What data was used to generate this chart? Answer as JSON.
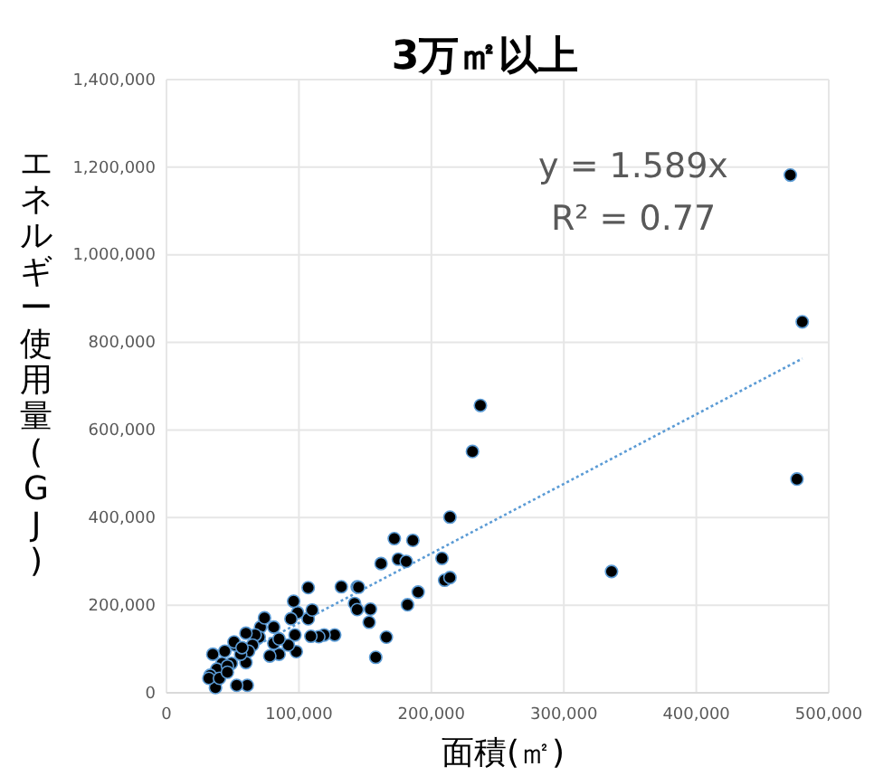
{
  "chart_data": {
    "type": "scatter",
    "title": "3万㎡以上",
    "xlabel": "面積(㎡)",
    "ylabel": "エネルギー使用量(GJ)",
    "xlim": [
      0,
      500000
    ],
    "xticks": [
      {
        "value": 0,
        "label": "0"
      },
      {
        "value": 100000,
        "label": "100,000"
      },
      {
        "value": 200000,
        "label": "200,000"
      },
      {
        "value": 300000,
        "label": "300,000"
      },
      {
        "value": 400000,
        "label": "400,000"
      },
      {
        "value": 500000,
        "label": "500,000"
      }
    ],
    "ylim": [
      0,
      1400000
    ],
    "yticks": [
      {
        "value": 0,
        "label": "0"
      },
      {
        "value": 200000,
        "label": "200,000"
      },
      {
        "value": 400000,
        "label": "400,000"
      },
      {
        "value": 600000,
        "label": "600,000"
      },
      {
        "value": 800000,
        "label": "800,000"
      },
      {
        "value": 1000000,
        "label": "1,000,000"
      },
      {
        "value": 1200000,
        "label": "1,200,000"
      },
      {
        "value": 1400000,
        "label": "1,400,000"
      }
    ],
    "grid": true,
    "marker": "circle",
    "annotations": [
      "y = 1.589x",
      "R² = 0.77"
    ],
    "series": [
      {
        "type": "scatter",
        "color": "#000000",
        "x": [
          471000,
          480000,
          476000,
          336000,
          237000,
          231000,
          214000,
          172000,
          186000,
          175000,
          181000,
          162000,
          208000,
          210000,
          214000,
          190000,
          107000,
          132000,
          144000,
          182000,
          154000,
          153000,
          166000,
          158000,
          145000,
          142000,
          144000,
          127000,
          119000,
          115000,
          109000,
          97000,
          98000,
          107000,
          110000,
          99000,
          96000,
          94000,
          92000,
          85000,
          81000,
          81000,
          78000,
          71000,
          70000,
          67000,
          65000,
          62000,
          60000,
          61000,
          53000,
          56000,
          52000,
          51000,
          49000,
          44000,
          42000,
          38000,
          35000,
          37000,
          33000,
          32000,
          40000,
          46000,
          57000,
          74000,
          60000,
          85000,
          46000
        ],
        "values": [
          1182000,
          847000,
          488000,
          277000,
          656000,
          551000,
          401000,
          352000,
          348000,
          305000,
          300000,
          295000,
          307000,
          257000,
          263000,
          230000,
          240000,
          242000,
          242000,
          201000,
          191000,
          161000,
          127000,
          81000,
          241000,
          204000,
          190000,
          132000,
          132000,
          128000,
          129000,
          132000,
          94000,
          169000,
          189000,
          183000,
          209000,
          169000,
          109000,
          88000,
          150000,
          113000,
          84000,
          150000,
          127000,
          132000,
          109000,
          95000,
          69000,
          17000,
          17000,
          88000,
          109000,
          116000,
          67000,
          95000,
          67000,
          54000,
          88000,
          12000,
          40000,
          33000,
          33000,
          61000,
          103000,
          171000,
          136000,
          123000,
          47000
        ]
      },
      {
        "type": "line",
        "color": "#5b9bd5",
        "line_style": "dotted",
        "marker": "none",
        "x": [
          30000,
          480000
        ],
        "values": [
          48000,
          763000
        ]
      }
    ]
  }
}
